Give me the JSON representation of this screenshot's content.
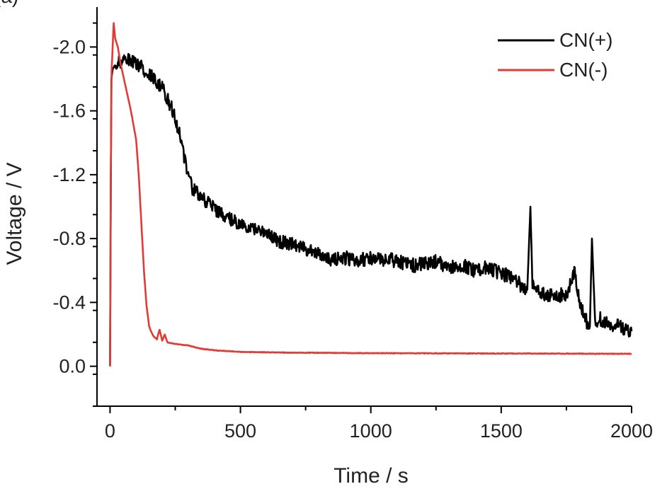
{
  "panel_label": "(a)",
  "chart_data": {
    "type": "line",
    "xlabel": "Time / s",
    "ylabel": "Voltage / V",
    "xlim": [
      -50,
      2000
    ],
    "ylim": [
      0.25,
      -2.25
    ],
    "y_axis_inverted": true,
    "x_ticks": [
      0,
      500,
      1000,
      1500,
      2000
    ],
    "x_tick_labels": [
      "0",
      "500",
      "1000",
      "1500",
      "2000"
    ],
    "y_ticks": [
      0.0,
      -0.4,
      -0.8,
      -1.2,
      -1.6,
      -2.0
    ],
    "y_tick_labels": [
      "0.0",
      "-0.4",
      "-0.8",
      "-1.2",
      "-1.6",
      "-2.0"
    ],
    "grid": false,
    "legend_position": "top-right",
    "series": [
      {
        "name": "CN(+)",
        "color": "#000000",
        "x": [
          0,
          5,
          10,
          20,
          40,
          60,
          80,
          100,
          120,
          140,
          160,
          180,
          200,
          220,
          240,
          260,
          280,
          300,
          320,
          340,
          360,
          380,
          400,
          420,
          450,
          480,
          500,
          550,
          600,
          650,
          700,
          750,
          800,
          850,
          900,
          950,
          1000,
          1050,
          1100,
          1150,
          1200,
          1250,
          1300,
          1350,
          1400,
          1450,
          1500,
          1550,
          1580,
          1600,
          1612,
          1620,
          1650,
          1700,
          1750,
          1770,
          1780,
          1800,
          1820,
          1840,
          1848,
          1860,
          1880,
          1900,
          1950,
          2000
        ],
        "y": [
          0.0,
          -1.8,
          -1.86,
          -1.89,
          -1.91,
          -1.92,
          -1.91,
          -1.89,
          -1.87,
          -1.84,
          -1.82,
          -1.78,
          -1.74,
          -1.68,
          -1.6,
          -1.5,
          -1.35,
          -1.18,
          -1.1,
          -1.08,
          -1.05,
          -1.02,
          -0.98,
          -0.97,
          -0.94,
          -0.9,
          -0.88,
          -0.86,
          -0.83,
          -0.78,
          -0.76,
          -0.73,
          -0.71,
          -0.66,
          -0.68,
          -0.66,
          -0.68,
          -0.67,
          -0.66,
          -0.63,
          -0.64,
          -0.66,
          -0.62,
          -0.63,
          -0.6,
          -0.62,
          -0.58,
          -0.55,
          -0.5,
          -0.48,
          -1.0,
          -0.5,
          -0.45,
          -0.44,
          -0.45,
          -0.55,
          -0.6,
          -0.42,
          -0.3,
          -0.25,
          -0.8,
          -0.28,
          -0.3,
          -0.27,
          -0.25,
          -0.22
        ]
      },
      {
        "name": "CN(-)",
        "color": "#e23b36",
        "x": [
          0,
          3,
          6,
          10,
          14,
          20,
          30,
          40,
          60,
          80,
          100,
          110,
          120,
          130,
          140,
          150,
          165,
          180,
          190,
          200,
          210,
          220,
          250,
          300,
          350,
          400,
          500,
          700,
          1000,
          1500,
          2000
        ],
        "y": [
          0.0,
          -1.2,
          -1.85,
          -2.0,
          -2.15,
          -2.05,
          -2.0,
          -1.9,
          -1.75,
          -1.6,
          -1.42,
          -1.2,
          -0.9,
          -0.6,
          -0.38,
          -0.25,
          -0.19,
          -0.17,
          -0.23,
          -0.16,
          -0.2,
          -0.15,
          -0.14,
          -0.13,
          -0.11,
          -0.1,
          -0.09,
          -0.085,
          -0.082,
          -0.08,
          -0.078
        ]
      }
    ]
  }
}
